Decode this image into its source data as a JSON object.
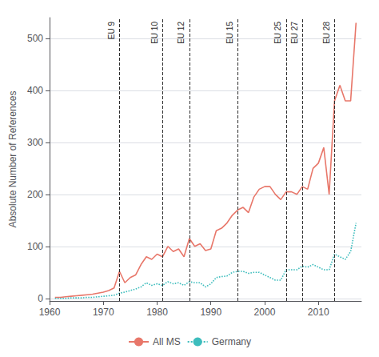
{
  "chart_data": {
    "type": "line",
    "ylabel": "Absolute Number of References",
    "xlim": [
      1960,
      2018
    ],
    "ylim": [
      -5,
      540
    ],
    "xticks": [
      1960,
      1970,
      1980,
      1990,
      2000,
      2010
    ],
    "yticks": [
      0,
      100,
      200,
      300,
      400,
      500
    ],
    "grid": true,
    "legend": "bottom",
    "x": [
      1961,
      1962,
      1963,
      1964,
      1965,
      1966,
      1967,
      1968,
      1969,
      1970,
      1971,
      1972,
      1973,
      1974,
      1975,
      1976,
      1977,
      1978,
      1979,
      1980,
      1981,
      1982,
      1983,
      1984,
      1985,
      1986,
      1987,
      1988,
      1989,
      1990,
      1991,
      1992,
      1993,
      1994,
      1995,
      1996,
      1997,
      1998,
      1999,
      2000,
      2001,
      2002,
      2003,
      2004,
      2005,
      2006,
      2007,
      2008,
      2009,
      2010,
      2011,
      2012,
      2013,
      2014,
      2015,
      2016,
      2017
    ],
    "series": [
      {
        "name": "All MS",
        "color": "#E8776A",
        "line_style": "solid",
        "values": [
          2,
          2,
          3,
          4,
          5,
          6,
          7,
          8,
          10,
          12,
          15,
          20,
          52,
          30,
          40,
          45,
          65,
          80,
          75,
          85,
          80,
          100,
          90,
          95,
          80,
          115,
          100,
          105,
          92,
          95,
          130,
          135,
          145,
          160,
          170,
          175,
          165,
          195,
          210,
          215,
          215,
          200,
          190,
          205,
          205,
          200,
          215,
          210,
          250,
          260,
          290,
          200,
          380,
          410,
          380,
          380,
          530
        ]
      },
      {
        "name": "Germany",
        "color": "#3DBDBD",
        "line_style": "dotted",
        "values": [
          0,
          0,
          0,
          1,
          1,
          1,
          2,
          2,
          3,
          4,
          5,
          6,
          10,
          12,
          15,
          18,
          22,
          30,
          25,
          28,
          25,
          32,
          28,
          30,
          25,
          32,
          30,
          30,
          22,
          28,
          40,
          42,
          43,
          50,
          52,
          52,
          48,
          50,
          50,
          45,
          40,
          35,
          35,
          55,
          55,
          55,
          62,
          60,
          65,
          60,
          55,
          55,
          85,
          80,
          75,
          90,
          145
        ]
      }
    ],
    "annotations": [
      {
        "x": 1973,
        "text": "EU 9",
        "color": "#2B2B2B"
      },
      {
        "x": 1981,
        "text": "EU 10",
        "color": "#2B2B2B"
      },
      {
        "x": 1986,
        "text": "EU 12",
        "color": "#2B2B2B"
      },
      {
        "x": 1995,
        "text": "EU 15",
        "color": "#2B2B2B"
      },
      {
        "x": 2004,
        "text": "EU 25",
        "color": "#2B2B2B"
      },
      {
        "x": 2007,
        "text": "EU 27",
        "color": "#2B2B2B"
      },
      {
        "x": 2013,
        "text": "EU 28",
        "color": "#2B2B2B"
      }
    ]
  }
}
